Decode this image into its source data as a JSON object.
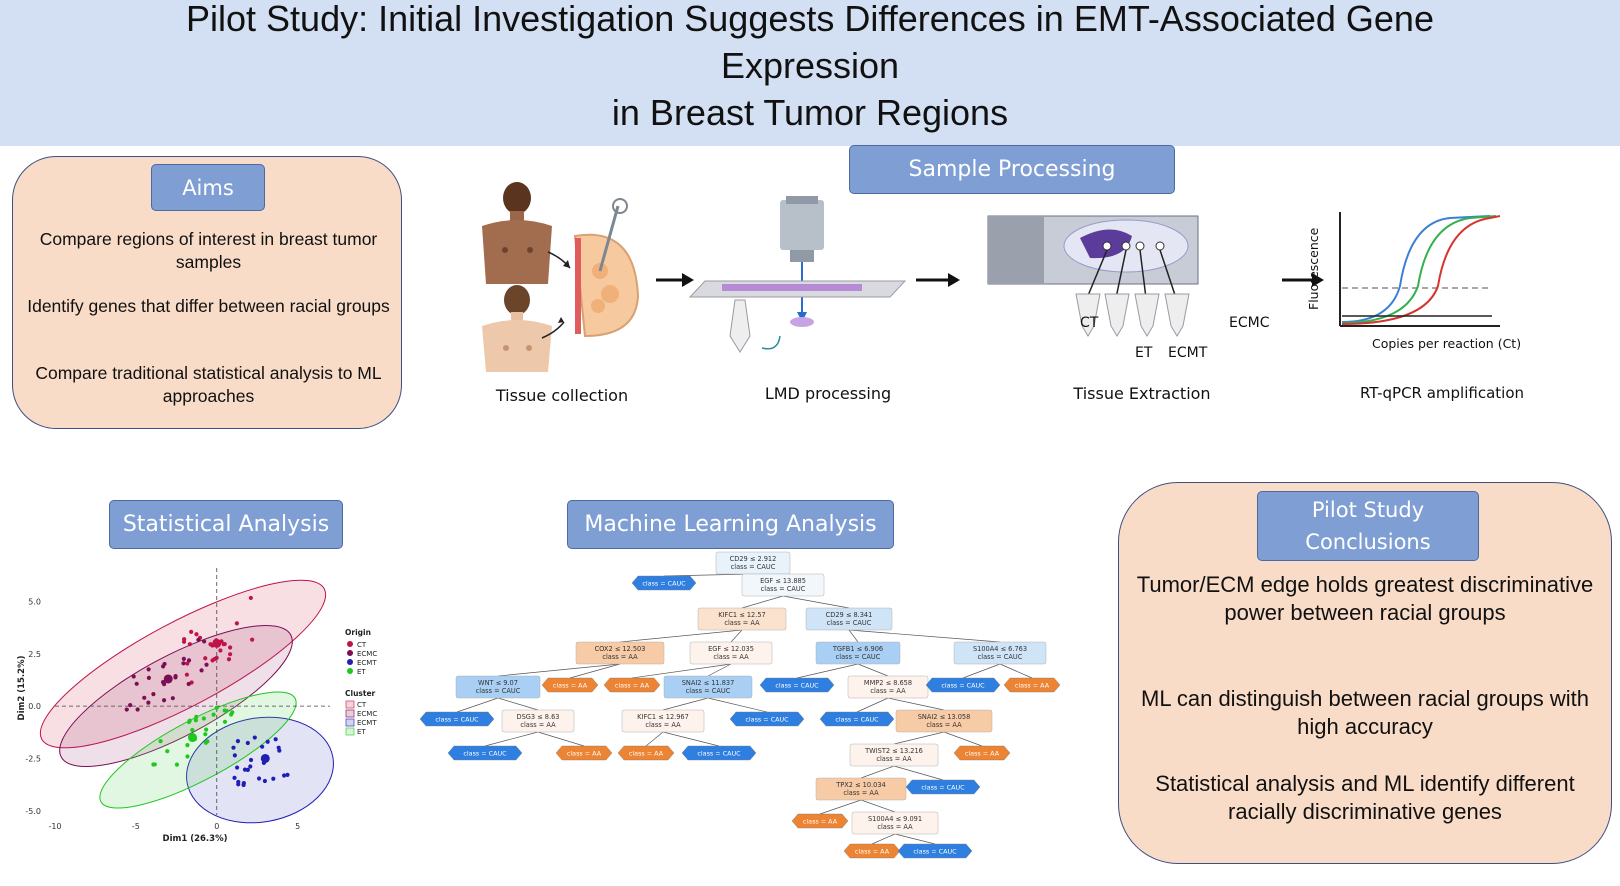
{
  "header": {
    "title_lines": [
      "Pilot Study: Initial Investigation Suggests Differences in EMT-Associated Gene",
      "Expression",
      "in Breast Tumor Regions"
    ]
  },
  "aims": {
    "title": "Aims",
    "items": [
      "Compare regions of interest in breast tumor samples",
      "Identify genes that differ between racial groups",
      "Compare traditional statistical analysis to ML approaches"
    ]
  },
  "sample_processing": {
    "title": "Sample Processing",
    "steps": [
      "Tissue collection",
      "LMD processing",
      "Tissue Extraction",
      "RT-qPCR amplification"
    ],
    "extraction_regions": [
      "CT",
      "ET",
      "ECMT",
      "ECMC"
    ],
    "qpcr": {
      "ylabel": "Fluorescence",
      "xlabel": "Copies per reaction (Ct)"
    }
  },
  "statistical_analysis": {
    "title": "Statistical Analysis"
  },
  "ml_analysis": {
    "title": "Machine Learning Analysis"
  },
  "conclusions": {
    "title": "Pilot Study Conclusions",
    "items": [
      "Tumor/ECM edge holds greatest discriminative power between racial groups",
      "ML can distinguish between racial groups with high accuracy",
      "Statistical analysis and ML identify different racially discriminative genes"
    ]
  },
  "chart_data": {
    "type": "scatter",
    "xlabel": "Dim1 (26.3%)",
    "ylabel": "Dim2 (15.2%)",
    "xlim": [
      -10,
      7
    ],
    "ylim": [
      -5.2,
      6.6
    ],
    "xticks": [
      -10,
      -5,
      0,
      5
    ],
    "yticks": [
      5.0,
      2.5,
      0.0,
      -2.5,
      -5.0
    ],
    "tick_labels_x": [
      "-10",
      "-5",
      "0",
      "5"
    ],
    "tick_labels_y": [
      "5.0",
      "2.5",
      "0.0",
      "-2.5",
      "-5.0"
    ],
    "legend_origin_title": "Origin",
    "legend_cluster_title": "Cluster",
    "series": [
      {
        "name": "CT",
        "color": "#c0134a",
        "centroid": [
          0,
          3
        ]
      },
      {
        "name": "ECMC",
        "color": "#7a0f53",
        "centroid": [
          -3,
          1.3
        ]
      },
      {
        "name": "ECMT",
        "color": "#1f1fb5",
        "centroid": [
          3,
          -2.5
        ]
      },
      {
        "name": "ET",
        "color": "#1fc81f",
        "centroid": [
          -1.5,
          -1.5
        ]
      }
    ],
    "clusters": [
      {
        "name": "CT",
        "color": "#d54c6c"
      },
      {
        "name": "ECMC",
        "color": "#9a3a6e"
      },
      {
        "name": "ECMT",
        "color": "#4f4fc8"
      },
      {
        "name": "ET",
        "color": "#5bd45b"
      }
    ]
  },
  "decision_tree": {
    "nodes": [
      {
        "kind": "split",
        "lines": [
          "CD29 ≤ 2.912",
          "class = CAUC"
        ],
        "color": "#e7f2fb"
      },
      {
        "kind": "leaf",
        "lines": [
          "class = CAUC"
        ],
        "color": "#2f7fe0"
      },
      {
        "kind": "split",
        "lines": [
          "EGF ≤ 13.885",
          "class = CAUC"
        ],
        "color": "#f2f7fc"
      },
      {
        "kind": "split",
        "lines": [
          "KIFC1 ≤ 12.57",
          "class = AA"
        ],
        "color": "#fbe2cf"
      },
      {
        "kind": "split",
        "lines": [
          "CD29 ≤ 8.341",
          "class = CAUC"
        ],
        "color": "#cfe4f7"
      },
      {
        "kind": "split",
        "lines": [
          "COX2 ≤ 12.503",
          "class = AA"
        ],
        "color": "#f7cba6"
      },
      {
        "kind": "split",
        "lines": [
          "EGF ≤ 12.035",
          "class = AA"
        ],
        "color": "#fdf3ec"
      },
      {
        "kind": "split",
        "lines": [
          "TGFB1 ≤ 6.906",
          "class = CAUC"
        ],
        "color": "#a9d0f4"
      },
      {
        "kind": "split",
        "lines": [
          "S100A4 ≤ 6.763",
          "class = CAUC"
        ],
        "color": "#cfe4f7"
      },
      {
        "kind": "split",
        "lines": [
          "WNT ≤ 9.07",
          "class = CAUC"
        ],
        "color": "#a9d0f4"
      },
      {
        "kind": "leaf",
        "lines": [
          "class = AA"
        ],
        "color": "#ec8433"
      },
      {
        "kind": "leaf",
        "lines": [
          "class = AA"
        ],
        "color": "#ec8433"
      },
      {
        "kind": "split",
        "lines": [
          "SNAI2 ≤ 11.837",
          "class = CAUC"
        ],
        "color": "#a9d0f4"
      },
      {
        "kind": "leaf",
        "lines": [
          "class = CAUC"
        ],
        "color": "#2f7fe0"
      },
      {
        "kind": "split",
        "lines": [
          "MMP2 ≤ 8.658",
          "class = AA"
        ],
        "color": "#fdf3ec"
      },
      {
        "kind": "leaf",
        "lines": [
          "class = CAUC"
        ],
        "color": "#2f7fe0"
      },
      {
        "kind": "leaf",
        "lines": [
          "class = AA"
        ],
        "color": "#ec8433"
      },
      {
        "kind": "leaf",
        "lines": [
          "class = CAUC"
        ],
        "color": "#2f7fe0"
      },
      {
        "kind": "split",
        "lines": [
          "DSG3 ≤ 8.63",
          "class = AA"
        ],
        "color": "#fdf3ec"
      },
      {
        "kind": "split",
        "lines": [
          "KIFC1 ≤ 12.967",
          "class = AA"
        ],
        "color": "#fdf3ec"
      },
      {
        "kind": "leaf",
        "lines": [
          "class = CAUC"
        ],
        "color": "#2f7fe0"
      },
      {
        "kind": "leaf",
        "lines": [
          "class = CAUC"
        ],
        "color": "#2f7fe0"
      },
      {
        "kind": "split",
        "lines": [
          "SNAI2 ≤ 13.058",
          "class = AA"
        ],
        "color": "#f7cba6"
      },
      {
        "kind": "leaf",
        "lines": [
          "class = CAUC"
        ],
        "color": "#2f7fe0"
      },
      {
        "kind": "leaf",
        "lines": [
          "class = AA"
        ],
        "color": "#ec8433"
      },
      {
        "kind": "leaf",
        "lines": [
          "class = AA"
        ],
        "color": "#ec8433"
      },
      {
        "kind": "leaf",
        "lines": [
          "class = CAUC"
        ],
        "color": "#2f7fe0"
      },
      {
        "kind": "split",
        "lines": [
          "TWIST2 ≤ 13.216",
          "class = AA"
        ],
        "color": "#fdf3ec"
      },
      {
        "kind": "leaf",
        "lines": [
          "class = AA"
        ],
        "color": "#ec8433"
      },
      {
        "kind": "split",
        "lines": [
          "TPX2 ≤ 10.034",
          "class = AA"
        ],
        "color": "#f7cba6"
      },
      {
        "kind": "leaf",
        "lines": [
          "class = CAUC"
        ],
        "color": "#2f7fe0"
      },
      {
        "kind": "leaf",
        "lines": [
          "class = AA"
        ],
        "color": "#ec8433"
      },
      {
        "kind": "split",
        "lines": [
          "S100A4 ≤ 9.091",
          "class = AA"
        ],
        "color": "#fdf3ec"
      },
      {
        "kind": "leaf",
        "lines": [
          "class = AA"
        ],
        "color": "#ec8433"
      },
      {
        "kind": "leaf",
        "lines": [
          "class = CAUC"
        ],
        "color": "#2f7fe0"
      }
    ]
  }
}
